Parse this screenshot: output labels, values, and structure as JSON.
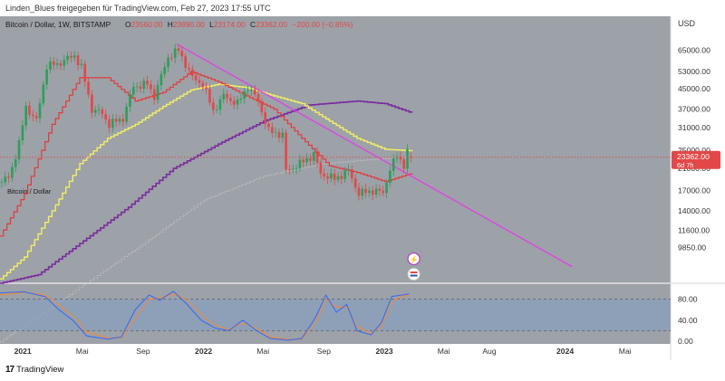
{
  "header": {
    "text": "Linden_Blues freigegeben für TradingView.com, Feb 27, 2023 17:55 UTC"
  },
  "footer": {
    "brand": "TradingView",
    "logo_glyph": "17"
  },
  "colors": {
    "background": "#9da1a8",
    "candle_up": "#2e9e5a",
    "candle_down": "#e24848",
    "sma_red": "#e23a3a",
    "sma_yellow": "#f4f062",
    "sma_purple": "#7a2a9e",
    "sma_gray": "#c3c5c8",
    "trendline": "#e040e8",
    "stoch_k": "#3b6cf0",
    "stoch_d": "#f08a3a",
    "stoch_band": "#8aa0bc",
    "price_tag": "#e24848"
  },
  "chart_data": [
    {
      "type": "candlestick",
      "title": "Bitcoin / Dollar, 1W, BITSTAMP",
      "ohlc_label": {
        "o_label": "O",
        "o_value": "23560.00",
        "h_label": "H",
        "h_value": "23890.00",
        "l_label": "L",
        "l_value": "23174.00",
        "c_label": "C",
        "c_value": "23362.00",
        "change": "−200.00 (−0.85%)"
      },
      "side_title": "Bitcoin / Dollar",
      "axis_currency": "USD",
      "y_scale": "log",
      "ylim": [
        7000,
        90000
      ],
      "y_ticks": [
        65000,
        53000,
        45000,
        37000,
        31000,
        25000,
        21000,
        17000,
        14000,
        11600,
        9850
      ],
      "y_tick_labels": [
        "65000.00",
        "53000.00",
        "45000.00",
        "37000.00",
        "31000.00",
        "25000.00",
        "21000.00",
        "17000.00",
        "14000.00",
        "11600.00",
        "9850.00"
      ],
      "x_ticks": [
        {
          "label": "2021",
          "date": "2021-01-01",
          "bold": true
        },
        {
          "label": "Mai",
          "date": "2021-05-01",
          "bold": false
        },
        {
          "label": "Sep",
          "date": "2021-09-01",
          "bold": false
        },
        {
          "label": "2022",
          "date": "2022-01-01",
          "bold": true
        },
        {
          "label": "Mai",
          "date": "2022-05-01",
          "bold": false
        },
        {
          "label": "Sep",
          "date": "2022-09-01",
          "bold": false
        },
        {
          "label": "2023",
          "date": "2023-01-01",
          "bold": true
        },
        {
          "label": "Mai",
          "date": "2023-05-01",
          "bold": false
        },
        {
          "label": "Aug",
          "date": "2023-08-01",
          "bold": false
        },
        {
          "label": "2024",
          "date": "2024-01-01",
          "bold": true
        },
        {
          "label": "Mai",
          "date": "2024-05-01",
          "bold": false
        }
      ],
      "xlim": [
        "2020-11-16",
        "2024-08-01"
      ],
      "last_price": {
        "value": 23362,
        "label": "23362.00",
        "countdown": "6d 7h"
      },
      "close_series": [
        {
          "date": "2020-11-16",
          "close": 18400
        },
        {
          "date": "2020-12-01",
          "close": 19400
        },
        {
          "date": "2020-12-21",
          "close": 26500
        },
        {
          "date": "2021-01-04",
          "close": 38000
        },
        {
          "date": "2021-01-25",
          "close": 33000
        },
        {
          "date": "2021-02-15",
          "close": 56000
        },
        {
          "date": "2021-03-08",
          "close": 57000
        },
        {
          "date": "2021-04-12",
          "close": 62000
        },
        {
          "date": "2021-04-26",
          "close": 55000
        },
        {
          "date": "2021-05-17",
          "close": 37000
        },
        {
          "date": "2021-06-07",
          "close": 35500
        },
        {
          "date": "2021-06-21",
          "close": 32000
        },
        {
          "date": "2021-07-19",
          "close": 34000
        },
        {
          "date": "2021-08-09",
          "close": 46000
        },
        {
          "date": "2021-09-06",
          "close": 47000
        },
        {
          "date": "2021-09-20",
          "close": 42000
        },
        {
          "date": "2021-10-18",
          "close": 61000
        },
        {
          "date": "2021-11-08",
          "close": 65000
        },
        {
          "date": "2021-11-22",
          "close": 57000
        },
        {
          "date": "2021-12-06",
          "close": 50000
        },
        {
          "date": "2021-12-27",
          "close": 47000
        },
        {
          "date": "2022-01-17",
          "close": 36500
        },
        {
          "date": "2022-02-07",
          "close": 42000
        },
        {
          "date": "2022-03-07",
          "close": 39000
        },
        {
          "date": "2022-03-28",
          "close": 46000
        },
        {
          "date": "2022-04-18",
          "close": 40000
        },
        {
          "date": "2022-05-09",
          "close": 30000
        },
        {
          "date": "2022-06-06",
          "close": 29000
        },
        {
          "date": "2022-06-13",
          "close": 20500
        },
        {
          "date": "2022-07-04",
          "close": 21500
        },
        {
          "date": "2022-08-08",
          "close": 24000
        },
        {
          "date": "2022-08-22",
          "close": 20000
        },
        {
          "date": "2022-09-19",
          "close": 19000
        },
        {
          "date": "2022-10-17",
          "close": 20500
        },
        {
          "date": "2022-11-07",
          "close": 16500
        },
        {
          "date": "2022-12-05",
          "close": 17000
        },
        {
          "date": "2022-12-26",
          "close": 16600
        },
        {
          "date": "2023-01-09",
          "close": 20900
        },
        {
          "date": "2023-01-23",
          "close": 23700
        },
        {
          "date": "2023-02-06",
          "close": 21800
        },
        {
          "date": "2023-02-13",
          "close": 24600
        },
        {
          "date": "2023-02-20",
          "close": 23362
        }
      ],
      "sma_red": [
        {
          "date": "2020-11-16",
          "value": 11000
        },
        {
          "date": "2021-01-04",
          "value": 16500
        },
        {
          "date": "2021-03-01",
          "value": 32000
        },
        {
          "date": "2021-04-26",
          "value": 50000
        },
        {
          "date": "2021-06-21",
          "value": 50000
        },
        {
          "date": "2021-08-16",
          "value": 40000
        },
        {
          "date": "2021-10-11",
          "value": 43500
        },
        {
          "date": "2021-12-06",
          "value": 53000
        },
        {
          "date": "2022-01-31",
          "value": 48000
        },
        {
          "date": "2022-03-28",
          "value": 42000
        },
        {
          "date": "2022-05-23",
          "value": 37000
        },
        {
          "date": "2022-07-18",
          "value": 28000
        },
        {
          "date": "2022-09-12",
          "value": 21500
        },
        {
          "date": "2022-11-07",
          "value": 20200
        },
        {
          "date": "2023-01-02",
          "value": 18500
        },
        {
          "date": "2023-02-20",
          "value": 19900
        }
      ],
      "sma_yellow": [
        {
          "date": "2020-11-16",
          "value": 7300
        },
        {
          "date": "2021-01-04",
          "value": 9000
        },
        {
          "date": "2021-03-01",
          "value": 14000
        },
        {
          "date": "2021-04-26",
          "value": 22000
        },
        {
          "date": "2021-06-21",
          "value": 28000
        },
        {
          "date": "2021-08-16",
          "value": 32000
        },
        {
          "date": "2021-10-11",
          "value": 38000
        },
        {
          "date": "2021-12-06",
          "value": 44500
        },
        {
          "date": "2022-01-31",
          "value": 47000
        },
        {
          "date": "2022-03-28",
          "value": 45500
        },
        {
          "date": "2022-05-23",
          "value": 42000
        },
        {
          "date": "2022-07-18",
          "value": 39000
        },
        {
          "date": "2022-09-12",
          "value": 33000
        },
        {
          "date": "2022-11-07",
          "value": 28000
        },
        {
          "date": "2023-01-02",
          "value": 25200
        },
        {
          "date": "2023-02-20",
          "value": 24900
        }
      ],
      "sma_purple": [
        {
          "date": "2020-11-16",
          "value": 7000
        },
        {
          "date": "2021-02-01",
          "value": 7600
        },
        {
          "date": "2021-05-03",
          "value": 10500
        },
        {
          "date": "2021-08-02",
          "value": 14500
        },
        {
          "date": "2021-11-01",
          "value": 21000
        },
        {
          "date": "2022-02-07",
          "value": 27000
        },
        {
          "date": "2022-05-02",
          "value": 33000
        },
        {
          "date": "2022-08-01",
          "value": 38500
        },
        {
          "date": "2022-11-07",
          "value": 40000
        },
        {
          "date": "2023-01-02",
          "value": 39000
        },
        {
          "date": "2023-02-20",
          "value": 36000
        }
      ],
      "sma_gray": [
        {
          "date": "2020-11-16",
          "value": 4000
        },
        {
          "date": "2021-04-01",
          "value": 6200
        },
        {
          "date": "2021-09-01",
          "value": 10200
        },
        {
          "date": "2022-01-01",
          "value": 15500
        },
        {
          "date": "2022-05-01",
          "value": 19500
        },
        {
          "date": "2022-09-01",
          "value": 22000
        },
        {
          "date": "2023-02-20",
          "value": 23500
        }
      ],
      "trendline": [
        {
          "date": "2021-11-08",
          "value": 69000
        },
        {
          "date": "2024-01-15",
          "value": 8200
        }
      ],
      "markers": [
        {
          "name": "earnings-marker",
          "glyph": "⚡",
          "date": "2023-02-13"
        },
        {
          "name": "dividend-flag-marker",
          "glyph": "",
          "date": "2023-02-13"
        }
      ]
    },
    {
      "type": "line",
      "indicator": "stochastic",
      "ylim": [
        0,
        100
      ],
      "y_ticks": [
        80,
        40,
        0
      ],
      "y_tick_labels": [
        "80.00",
        "40.00",
        "0.00"
      ],
      "band": [
        20,
        80
      ],
      "k_series": [
        {
          "date": "2020-11-16",
          "value": 92
        },
        {
          "date": "2021-01-04",
          "value": 94
        },
        {
          "date": "2021-02-15",
          "value": 85
        },
        {
          "date": "2021-03-15",
          "value": 60
        },
        {
          "date": "2021-04-12",
          "value": 40
        },
        {
          "date": "2021-05-10",
          "value": 10
        },
        {
          "date": "2021-06-21",
          "value": 4
        },
        {
          "date": "2021-07-19",
          "value": 8
        },
        {
          "date": "2021-08-16",
          "value": 60
        },
        {
          "date": "2021-09-13",
          "value": 88
        },
        {
          "date": "2021-10-04",
          "value": 78
        },
        {
          "date": "2021-11-01",
          "value": 95
        },
        {
          "date": "2021-11-29",
          "value": 70
        },
        {
          "date": "2021-12-27",
          "value": 40
        },
        {
          "date": "2022-01-24",
          "value": 25
        },
        {
          "date": "2022-02-21",
          "value": 20
        },
        {
          "date": "2022-03-21",
          "value": 40
        },
        {
          "date": "2022-04-18",
          "value": 20
        },
        {
          "date": "2022-05-16",
          "value": 5
        },
        {
          "date": "2022-06-20",
          "value": 2
        },
        {
          "date": "2022-07-18",
          "value": 5
        },
        {
          "date": "2022-08-15",
          "value": 45
        },
        {
          "date": "2022-09-05",
          "value": 88
        },
        {
          "date": "2022-09-26",
          "value": 55
        },
        {
          "date": "2022-10-17",
          "value": 70
        },
        {
          "date": "2022-11-07",
          "value": 20
        },
        {
          "date": "2022-12-05",
          "value": 12
        },
        {
          "date": "2022-12-26",
          "value": 35
        },
        {
          "date": "2023-01-16",
          "value": 85
        },
        {
          "date": "2023-02-06",
          "value": 88
        },
        {
          "date": "2023-02-20",
          "value": 90
        }
      ],
      "d_series": [
        {
          "date": "2020-11-16",
          "value": 88
        },
        {
          "date": "2021-01-04",
          "value": 93
        },
        {
          "date": "2021-02-15",
          "value": 88
        },
        {
          "date": "2021-03-15",
          "value": 68
        },
        {
          "date": "2021-04-12",
          "value": 48
        },
        {
          "date": "2021-05-10",
          "value": 18
        },
        {
          "date": "2021-06-21",
          "value": 6
        },
        {
          "date": "2021-07-19",
          "value": 6
        },
        {
          "date": "2021-08-16",
          "value": 45
        },
        {
          "date": "2021-09-13",
          "value": 80
        },
        {
          "date": "2021-10-04",
          "value": 82
        },
        {
          "date": "2021-11-01",
          "value": 90
        },
        {
          "date": "2021-11-29",
          "value": 78
        },
        {
          "date": "2021-12-27",
          "value": 50
        },
        {
          "date": "2022-01-24",
          "value": 30
        },
        {
          "date": "2022-02-21",
          "value": 22
        },
        {
          "date": "2022-03-21",
          "value": 35
        },
        {
          "date": "2022-04-18",
          "value": 25
        },
        {
          "date": "2022-05-16",
          "value": 8
        },
        {
          "date": "2022-06-20",
          "value": 3
        },
        {
          "date": "2022-07-18",
          "value": 4
        },
        {
          "date": "2022-08-15",
          "value": 35
        },
        {
          "date": "2022-09-05",
          "value": 80
        },
        {
          "date": "2022-09-26",
          "value": 65
        },
        {
          "date": "2022-10-17",
          "value": 65
        },
        {
          "date": "2022-11-07",
          "value": 28
        },
        {
          "date": "2022-12-05",
          "value": 14
        },
        {
          "date": "2022-12-26",
          "value": 28
        },
        {
          "date": "2023-01-16",
          "value": 75
        },
        {
          "date": "2023-02-06",
          "value": 86
        },
        {
          "date": "2023-02-20",
          "value": 88
        }
      ]
    }
  ]
}
